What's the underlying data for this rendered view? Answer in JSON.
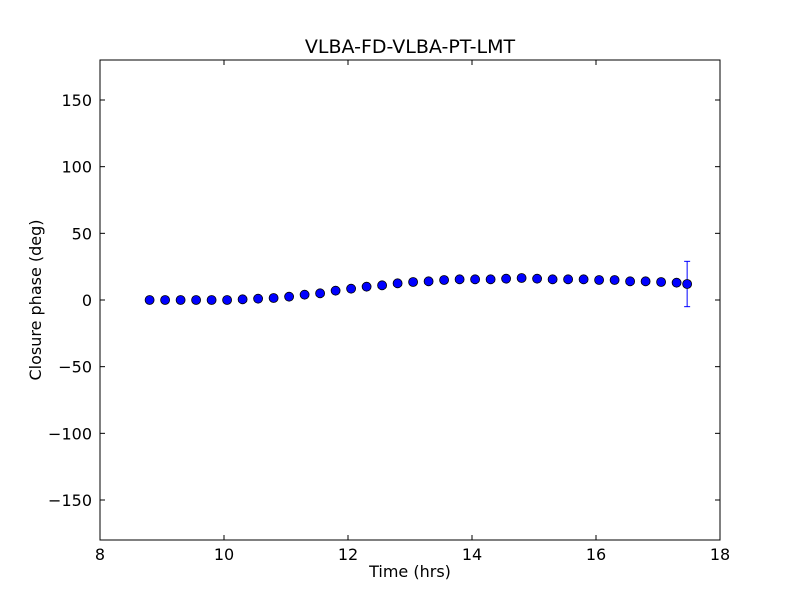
{
  "chart_data": {
    "type": "scatter",
    "title": "VLBA-FD-VLBA-PT-LMT",
    "xlabel": "Time (hrs)",
    "ylabel": "Closure phase (deg)",
    "xlim": [
      8,
      18
    ],
    "ylim": [
      -180,
      180
    ],
    "xticks": [
      8,
      10,
      12,
      14,
      16,
      18
    ],
    "xtick_labels": [
      "8",
      "10",
      "12",
      "14",
      "16",
      "18"
    ],
    "yticks": [
      -150,
      -100,
      -50,
      0,
      50,
      100,
      150
    ],
    "ytick_labels": [
      "−150",
      "−100",
      "−50",
      "0",
      "50",
      "100",
      "150"
    ],
    "grid": false,
    "marker_color": "#0000ff",
    "series": [
      {
        "x": [
          8.8,
          9.05,
          9.3,
          9.55,
          9.8,
          10.05,
          10.3,
          10.55,
          10.8,
          11.05,
          11.3,
          11.55,
          11.8,
          12.05,
          12.3,
          12.55,
          12.8,
          13.05,
          13.3,
          13.55,
          13.8,
          14.05,
          14.3,
          14.55,
          14.8,
          15.05,
          15.3,
          15.55,
          15.8,
          16.05,
          16.3,
          16.55,
          16.8,
          17.05,
          17.3,
          17.47
        ],
        "y": [
          0,
          0,
          0,
          0,
          0,
          0,
          0.5,
          1,
          1.5,
          2.5,
          4,
          5,
          7,
          8.5,
          10,
          11,
          12.5,
          13.5,
          14,
          15,
          15.5,
          15.5,
          15.5,
          16,
          16.5,
          16,
          15.5,
          15.5,
          15.5,
          15,
          15,
          14,
          14,
          13.5,
          13,
          12
        ],
        "yerr": [
          0,
          0,
          0,
          0,
          0,
          0,
          0,
          0,
          0,
          0,
          0,
          0,
          0,
          0,
          0,
          0,
          0,
          0,
          0,
          0,
          0,
          0,
          0,
          0,
          0,
          0,
          0,
          0,
          0,
          0,
          0,
          0,
          0,
          0,
          0,
          17
        ]
      }
    ]
  }
}
